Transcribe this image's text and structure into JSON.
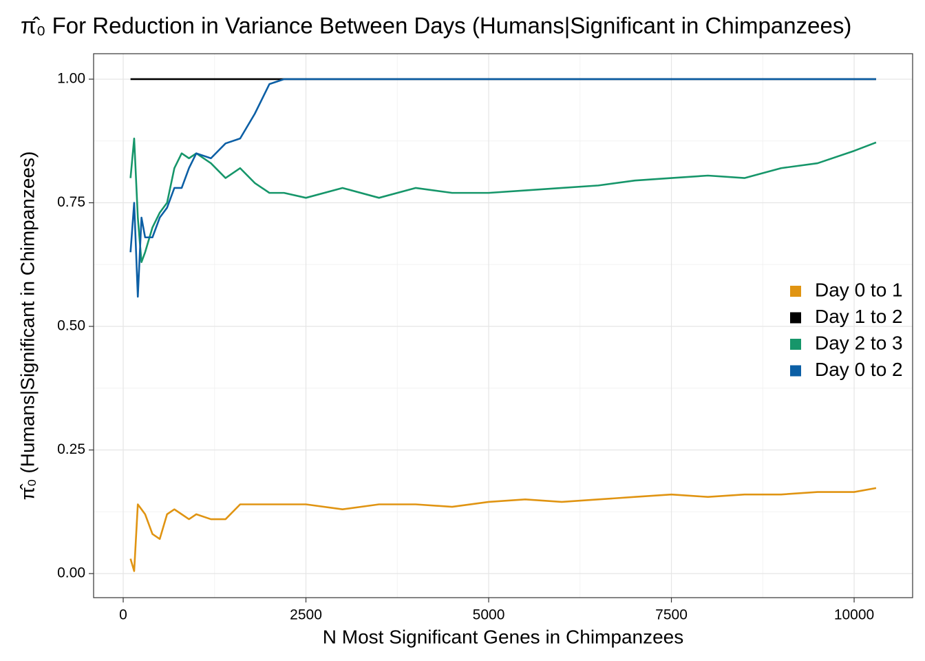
{
  "chart_data": {
    "type": "line",
    "title": "π̂₀ For Reduction in Variance Between Days (Humans|Significant in Chimpanzees)",
    "x_label": "N Most Significant Genes in Chimpanzees",
    "y_label": "π̂₀ (Humans|Significant in Chimpanzees)",
    "x": [
      100,
      150,
      200,
      250,
      300,
      400,
      500,
      600,
      700,
      800,
      900,
      1000,
      1200,
      1400,
      1600,
      1800,
      2000,
      2200,
      2500,
      3000,
      3500,
      4000,
      4500,
      5000,
      5500,
      6000,
      6500,
      7000,
      7500,
      8000,
      8500,
      9000,
      9500,
      10000,
      10300
    ],
    "series": [
      {
        "name": "Day 0 to 1",
        "color": "#e09412",
        "values": [
          0.03,
          0.005,
          0.14,
          0.13,
          0.12,
          0.08,
          0.07,
          0.12,
          0.13,
          0.12,
          0.11,
          0.12,
          0.11,
          0.11,
          0.14,
          0.14,
          0.14,
          0.14,
          0.14,
          0.13,
          0.14,
          0.14,
          0.135,
          0.145,
          0.15,
          0.145,
          0.15,
          0.155,
          0.16,
          0.155,
          0.16,
          0.16,
          0.165,
          0.165,
          0.173
        ]
      },
      {
        "name": "Day 1 to 2",
        "color": "#000000",
        "values": [
          1,
          1,
          1,
          1,
          1,
          1,
          1,
          1,
          1,
          1,
          1,
          1,
          1,
          1,
          1,
          1,
          1,
          1,
          1,
          1,
          1,
          1,
          1,
          1,
          1,
          1,
          1,
          1,
          1,
          1,
          1,
          1,
          1,
          1,
          1
        ]
      },
      {
        "name": "Day 2 to 3",
        "color": "#16966a",
        "values": [
          0.8,
          0.88,
          0.72,
          0.63,
          0.65,
          0.7,
          0.73,
          0.75,
          0.82,
          0.85,
          0.84,
          0.85,
          0.83,
          0.8,
          0.82,
          0.79,
          0.77,
          0.77,
          0.76,
          0.78,
          0.76,
          0.78,
          0.77,
          0.77,
          0.775,
          0.78,
          0.785,
          0.795,
          0.8,
          0.805,
          0.8,
          0.82,
          0.83,
          0.855,
          0.872
        ]
      },
      {
        "name": "Day 0 to 2",
        "color": "#0c5fa5",
        "values": [
          0.65,
          0.75,
          0.56,
          0.72,
          0.68,
          0.68,
          0.72,
          0.74,
          0.78,
          0.78,
          0.82,
          0.85,
          0.84,
          0.87,
          0.88,
          0.93,
          0.99,
          1,
          1,
          1,
          1,
          1,
          1,
          1,
          1,
          1,
          1,
          1,
          1,
          1,
          1,
          1,
          1,
          1,
          1
        ]
      }
    ],
    "xlim": [
      -405,
      10800
    ],
    "ylim": [
      -0.0487,
      1.0515
    ],
    "xticks": [
      0,
      2500,
      5000,
      7500,
      10000
    ],
    "yticks": [
      {
        "value": 0,
        "label": "0.00"
      },
      {
        "value": 0.25,
        "label": "0.25"
      },
      {
        "value": 0.5,
        "label": "0.50"
      },
      {
        "value": 0.75,
        "label": "0.75"
      },
      {
        "value": 1,
        "label": "1.00"
      }
    ],
    "x_minor": [
      1250,
      3750,
      6250,
      8750
    ],
    "y_minor": [
      0.125,
      0.375,
      0.625,
      0.875
    ],
    "grid": true,
    "legend": "right"
  }
}
